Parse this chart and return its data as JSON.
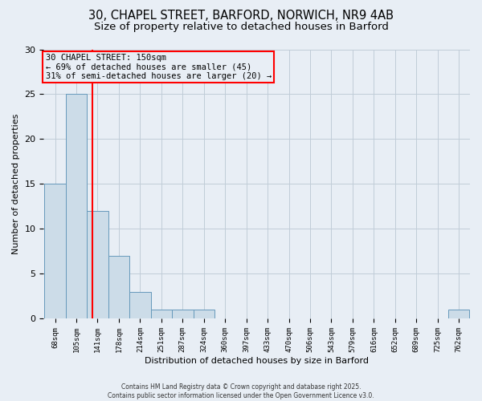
{
  "title_line1": "30, CHAPEL STREET, BARFORD, NORWICH, NR9 4AB",
  "title_line2": "Size of property relative to detached houses in Barford",
  "xlabel": "Distribution of detached houses by size in Barford",
  "ylabel": "Number of detached properties",
  "bar_edges": [
    68,
    105,
    141,
    178,
    214,
    251,
    287,
    324,
    360,
    397,
    433,
    470,
    506,
    543,
    579,
    616,
    652,
    689,
    725,
    762,
    798
  ],
  "bar_heights": [
    15,
    25,
    12,
    7,
    3,
    1,
    1,
    1,
    0,
    0,
    0,
    0,
    0,
    0,
    0,
    0,
    0,
    0,
    0,
    1
  ],
  "bar_color": "#ccdce8",
  "bar_edge_color": "#6699bb",
  "grid_color": "#c0ccd8",
  "background_color": "#e8eef5",
  "red_line_x": 150,
  "annotation_box_text": "30 CHAPEL STREET: 150sqm\n← 69% of detached houses are smaller (45)\n31% of semi-detached houses are larger (20) →",
  "ylim": [
    0,
    30
  ],
  "yticks": [
    0,
    5,
    10,
    15,
    20,
    25,
    30
  ],
  "footer_text": "Contains HM Land Registry data © Crown copyright and database right 2025.\nContains public sector information licensed under the Open Government Licence v3.0.",
  "title_fontsize": 10.5,
  "subtitle_fontsize": 9.5,
  "axis_label_fontsize": 8,
  "tick_fontsize": 6.5,
  "footer_fontsize": 5.5,
  "annotation_fontsize": 7.5
}
